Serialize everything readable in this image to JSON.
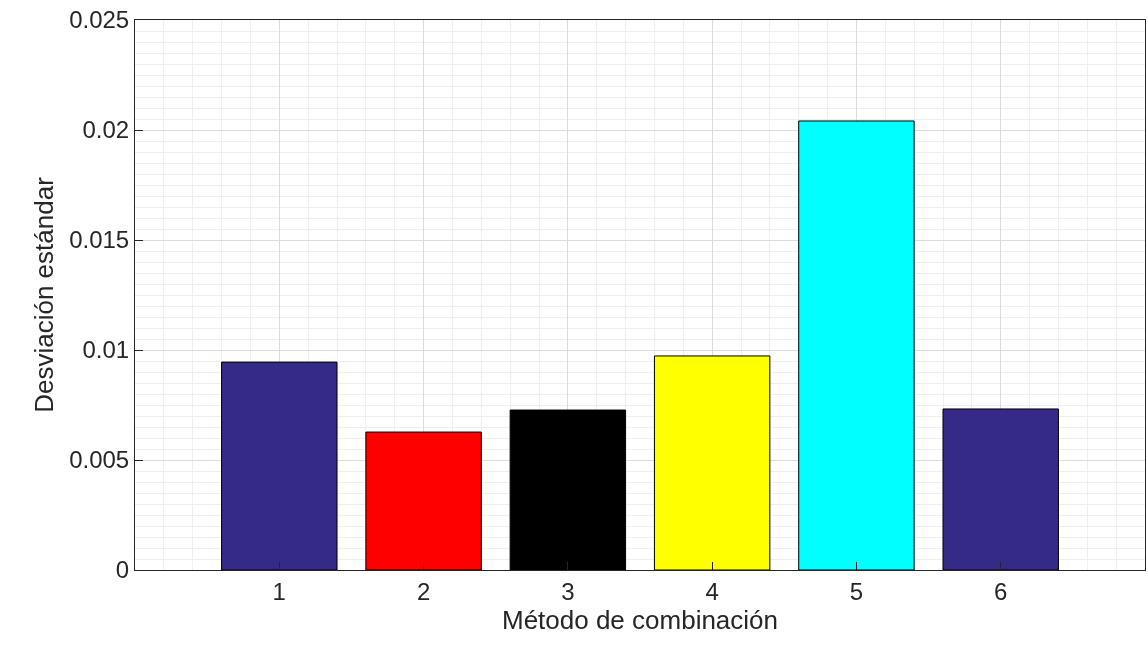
{
  "chart_data": {
    "type": "bar",
    "xlabel": "Método de combinación",
    "ylabel": "Desviación estándar",
    "x": [
      1,
      2,
      3,
      4,
      5,
      6
    ],
    "values": [
      0.00945,
      0.00627,
      0.00727,
      0.00973,
      0.02041,
      0.00732
    ],
    "colors": [
      "#352a87",
      "#ff0000",
      "#000000",
      "#ffff00",
      "#00ffff",
      "#352a87"
    ],
    "xlim": [
      0,
      7
    ],
    "xticks": [
      1,
      2,
      3,
      4,
      5,
      6
    ],
    "ylim": [
      0,
      0.025
    ],
    "yticks": [
      0,
      0.005,
      0.01,
      0.015,
      0.02,
      0.025
    ],
    "grid": true
  }
}
